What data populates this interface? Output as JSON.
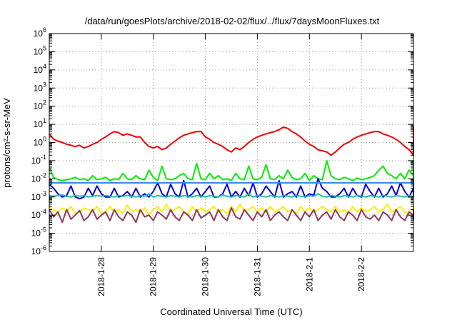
{
  "chart_data": {
    "type": "line",
    "title": "/data/run/goesPlots/archive/2018-02-02/flux/../flux/7daysMoonFluxes.txt",
    "xlabel": "Coordinated Universal Time (UTC)",
    "ylabel": "protons/cm²-s-sr-MeV",
    "y_scale": "log",
    "ylim_exponents": [
      -6,
      6
    ],
    "y_tick_exponents": [
      -6,
      -5,
      -4,
      -3,
      -2,
      -1,
      0,
      1,
      2,
      3,
      4,
      5,
      6
    ],
    "xlim_days": [
      "2018-01-27",
      "2018-02-03"
    ],
    "x_ticks": [
      {
        "date": "2018-01-28",
        "label": "2018-1-28"
      },
      {
        "date": "2018-01-29",
        "label": "2018-1-29"
      },
      {
        "date": "2018-01-30",
        "label": "2018-1-30"
      },
      {
        "date": "2018-01-31",
        "label": "2018-1-31"
      },
      {
        "date": "2018-02-01",
        "label": "2018-2-1"
      },
      {
        "date": "2018-02-02",
        "label": "2018-2-2"
      }
    ],
    "grid": true,
    "legend": "none",
    "x_start": "2018-01-27T00:00",
    "x_step_hours": 2,
    "series": [
      {
        "color": "#ee0000",
        "values": [
          3.0,
          1.5,
          1.2,
          1.0,
          0.8,
          0.7,
          0.6,
          0.7,
          0.5,
          0.6,
          0.8,
          1.0,
          1.5,
          2.0,
          3.0,
          4.0,
          3.5,
          2.5,
          3.0,
          2.5,
          2.0,
          2.0,
          1.0,
          0.6,
          0.5,
          0.6,
          0.4,
          0.5,
          0.8,
          1.2,
          1.8,
          2.5,
          3.0,
          3.5,
          4.0,
          4.0,
          2.0,
          1.5,
          1.0,
          0.8,
          0.6,
          0.4,
          0.3,
          0.5,
          0.4,
          0.6,
          1.0,
          1.5,
          2.0,
          2.5,
          3.0,
          3.5,
          4.0,
          5.0,
          7.0,
          6.0,
          4.0,
          3.0,
          2.0,
          1.2,
          0.8,
          0.6,
          0.4,
          0.35,
          0.3,
          0.2,
          0.3,
          0.5,
          0.8,
          1.0,
          1.5,
          2.0,
          2.5,
          3.0,
          3.5,
          4.0,
          4.0,
          3.0,
          2.5,
          2.0,
          1.5,
          1.0,
          0.6,
          0.4,
          0.2,
          0.8,
          0.6,
          0.5,
          1.0,
          1.5,
          2.0,
          3.0,
          4.0,
          8.0,
          3.0,
          4.0,
          2.5,
          1.5,
          1.0,
          0.8,
          0.6,
          0.4,
          0.5,
          0.6,
          0.8,
          1.0,
          1.5,
          2.0,
          3.0,
          4.0,
          2.5,
          3.0,
          4.0,
          2.0,
          1.5,
          3.0,
          4.0,
          3.0,
          1.5,
          1.0,
          0.6,
          0.4,
          0.5,
          0.8,
          0.6,
          0.8,
          1.0,
          1.5,
          2.0,
          2.5,
          3.0,
          4.0,
          5.0,
          5.0,
          4.0,
          3.5
        ]
      },
      {
        "color": "#00ee00",
        "values": [
          0.04,
          0.012,
          0.009,
          0.008,
          0.009,
          0.01,
          0.012,
          0.009,
          0.01,
          0.008,
          0.015,
          0.009,
          0.01,
          0.012,
          0.008,
          0.01,
          0.009,
          0.02,
          0.01,
          0.009,
          0.015,
          0.01,
          0.009,
          0.03,
          0.012,
          0.008,
          0.05,
          0.01,
          0.009,
          0.01,
          0.015,
          0.02,
          0.01,
          0.009,
          0.07,
          0.01,
          0.009,
          0.02,
          0.01,
          0.015,
          0.009,
          0.01,
          0.008,
          0.02,
          0.01,
          0.009,
          0.05,
          0.01,
          0.009,
          0.012,
          0.06,
          0.01,
          0.009,
          0.015,
          0.01,
          0.03,
          0.012,
          0.009,
          0.01,
          0.02,
          0.008,
          0.015,
          0.01,
          0.009,
          0.1,
          0.015,
          0.01,
          0.009,
          0.012,
          0.01,
          0.008,
          0.011,
          0.009,
          0.01,
          0.012,
          0.015,
          0.03,
          0.05,
          0.02,
          0.015,
          0.01,
          0.02,
          0.01,
          0.03,
          0.015,
          0.008,
          0.01,
          0.012,
          0.009,
          0.05,
          0.01,
          0.015,
          0.009,
          0.01,
          0.08,
          0.01,
          0.009,
          0.012,
          0.015,
          0.01,
          0.04,
          0.012,
          0.009,
          0.01,
          0.02,
          0.009,
          0.01,
          0.015,
          0.01,
          0.012,
          0.009,
          0.05,
          0.015,
          0.009,
          0.01,
          0.02,
          0.01,
          0.009,
          0.012,
          0.1,
          0.01,
          0.009,
          0.015,
          0.01,
          0.02,
          0.009,
          0.01,
          0.015,
          0.012,
          0.03,
          0.009,
          0.01,
          0.012,
          0.009,
          0.01,
          0.01
        ]
      },
      {
        "color": "#0000dd",
        "values": [
          0.005,
          0.003,
          0.0015,
          0.001,
          0.0012,
          0.004,
          0.001,
          0.0008,
          0.001,
          0.003,
          0.0012,
          0.004,
          0.0015,
          0.001,
          0.001,
          0.003,
          0.001,
          0.0012,
          0.002,
          0.001,
          0.003,
          0.001,
          0.0015,
          0.001,
          0.002,
          0.006,
          0.0015,
          0.001,
          0.005,
          0.0015,
          0.001,
          0.008,
          0.001,
          0.0015,
          0.003,
          0.001,
          0.002,
          0.004,
          0.001,
          0.001,
          0.0015,
          0.005,
          0.001,
          0.002,
          0.001,
          0.003,
          0.0012,
          0.006,
          0.001,
          0.0015,
          0.004,
          0.002,
          0.001,
          0.008,
          0.001,
          0.0015,
          0.002,
          0.001,
          0.004,
          0.001,
          0.0015,
          0.0012,
          0.01,
          0.003,
          0.002,
          0.001,
          0.001,
          0.0015,
          0.003,
          0.001,
          0.003,
          0.0012,
          0.001,
          0.005,
          0.002,
          0.001,
          0.003,
          0.001,
          0.0015,
          0.004,
          0.0012,
          0.006,
          0.002,
          0.001,
          0.003,
          0.001,
          0.0015,
          0.001,
          0.002,
          0.004,
          0.001,
          0.0015,
          0.001,
          0.003,
          0.001,
          0.0015,
          0.001,
          0.002,
          0.008,
          0.001,
          0.0015,
          0.003,
          0.001,
          0.0015,
          0.002,
          0.001,
          0.004,
          0.001,
          0.0015,
          0.003,
          0.001,
          0.0012,
          0.005,
          0.0015,
          0.001,
          0.008,
          0.001,
          0.001,
          0.0012,
          0.003,
          0.001,
          0.0015,
          0.002,
          0.001,
          0.006,
          0.0015,
          0.001,
          0.0012,
          0.001,
          0.001,
          0.0012,
          0.0015,
          0.001,
          0.001,
          0.0012,
          0.004
        ]
      },
      {
        "color": "#3a86ff",
        "values": [
          0.006,
          0.006,
          0.006,
          0.006,
          0.006,
          0.006,
          0.006,
          0.006,
          0.006,
          0.006,
          0.006,
          0.006,
          0.006,
          0.006,
          0.006,
          0.006,
          0.006,
          0.006,
          0.006,
          0.006,
          0.006,
          0.006,
          0.006,
          0.006,
          0.006,
          0.006,
          0.006,
          0.006,
          0.006,
          0.006,
          0.006,
          0.006,
          0.006,
          0.006,
          0.006,
          0.006,
          0.006,
          0.006,
          0.006,
          0.006,
          0.006,
          0.006,
          0.006,
          0.006,
          0.006,
          0.006,
          0.006,
          0.006,
          0.006,
          0.006,
          0.006,
          0.006,
          0.006,
          0.006,
          0.006,
          0.006,
          0.006,
          0.006,
          0.006,
          0.006,
          0.006,
          0.006,
          0.006,
          0.006,
          0.006,
          0.006,
          0.006,
          0.006,
          0.006,
          0.006,
          0.006,
          0.006,
          0.006,
          0.006,
          0.006,
          0.006,
          0.006,
          0.006,
          0.006,
          0.006,
          0.006,
          0.006,
          0.006,
          0.006,
          0.006,
          0.006,
          0.006,
          0.006,
          0.006,
          0.006,
          0.006,
          0.006,
          0.006,
          0.006,
          0.006,
          0.006,
          0.006,
          0.006,
          0.006,
          0.006,
          0.006,
          0.006,
          0.006,
          0.006,
          0.006,
          0.006,
          0.006,
          0.006,
          0.006,
          0.006,
          0.006,
          0.006,
          0.006,
          0.006,
          0.006,
          0.006,
          0.006,
          0.006,
          0.006,
          0.006,
          0.006,
          0.006,
          0.006,
          0.006,
          0.006,
          0.006,
          0.006,
          0.006,
          0.006,
          0.006,
          0.006,
          0.006,
          0.006,
          0.006,
          0.006,
          0.006,
          0.006,
          0.006
        ]
      },
      {
        "color": "#1fbfa6",
        "values": [
          0.0012,
          0.0011,
          0.0012,
          0.0013,
          0.0011,
          0.001,
          0.0012,
          0.0011,
          0.0012,
          0.001,
          0.0011,
          0.0012,
          0.0011,
          0.0012,
          0.0011,
          0.001,
          0.0012,
          0.0011,
          0.0012,
          0.0011,
          0.001,
          0.0012,
          0.0011,
          0.0015,
          0.001,
          0.0012,
          0.0011,
          0.001,
          0.0012,
          0.0011,
          0.001,
          0.0012,
          0.0011,
          0.001,
          0.0012,
          0.0011,
          0.001,
          0.0012,
          0.0011,
          0.001,
          0.0013,
          0.0011,
          0.001,
          0.0012,
          0.0011,
          0.001,
          0.0015,
          0.001,
          0.0012,
          0.0011,
          0.001,
          0.0012,
          0.0011,
          0.001,
          0.0012,
          0.0011,
          0.001,
          0.0012,
          0.0011,
          0.001,
          0.0012,
          0.0011,
          0.0015,
          0.0011,
          0.001,
          0.0012,
          0.0011,
          0.001,
          0.0012,
          0.0011,
          0.001,
          0.0012,
          0.0011,
          0.001,
          0.0012,
          0.0011,
          0.001,
          0.0012,
          0.0011,
          0.001,
          0.0012,
          0.0011,
          0.001,
          0.0012,
          0.0011,
          0.001,
          0.0012,
          0.0011,
          0.001,
          0.0013,
          0.0011,
          0.001,
          0.0012,
          0.0011,
          0.001,
          0.0012,
          0.0011,
          0.001,
          0.0012,
          0.0011,
          0.001,
          0.0012,
          0.0011,
          0.001,
          0.0012,
          0.0011,
          0.001,
          0.0012,
          0.0011,
          0.001,
          0.0012,
          0.0011,
          0.001,
          0.0012,
          0.0011,
          0.001,
          0.0012,
          0.0011,
          0.001,
          0.0012,
          0.0011,
          0.001,
          0.0012,
          0.0011,
          0.001,
          0.0012,
          0.0011,
          0.001,
          0.0012,
          0.0011,
          0.001,
          0.0012,
          0.0011,
          0.001,
          0.0012,
          0.0011
        ]
      },
      {
        "color": "#ffee00",
        "values": [
          0.0003,
          0.00018,
          0.00015,
          0.00025,
          0.00015,
          0.0003,
          0.00012,
          0.00015,
          0.00025,
          0.0002,
          0.00015,
          0.0003,
          0.00012,
          0.00015,
          0.0003,
          0.00015,
          0.0002,
          0.00012,
          0.00035,
          0.00015,
          0.0002,
          0.00015,
          0.00025,
          0.0001,
          0.0002,
          0.0003,
          0.00015,
          0.0004,
          0.00015,
          0.0002,
          0.0003,
          0.00015,
          0.00012,
          0.0003,
          0.00015,
          0.00025,
          0.00015,
          0.0002,
          0.0003,
          0.00015,
          0.0002,
          0.00012,
          0.0003,
          0.00015,
          0.0004,
          0.00015,
          0.0002,
          0.0003,
          0.00015,
          0.00025,
          0.00015,
          0.0003,
          0.00015,
          0.0002,
          0.0003,
          0.00015,
          0.0002,
          0.00012,
          0.0003,
          0.00015,
          0.00025,
          0.00015,
          0.0002,
          0.0003,
          0.0002,
          0.00015,
          0.0003,
          0.00015,
          0.0002,
          0.00012,
          0.0003,
          0.00015,
          0.00025,
          0.00015,
          0.0002,
          0.0003,
          0.00015,
          0.0002,
          0.0004,
          0.00015,
          0.0002,
          0.0003,
          0.00015,
          0.00012,
          0.00025,
          0.00015,
          0.0003,
          0.00015,
          0.0002,
          0.00015,
          0.0003,
          0.00015,
          0.0002,
          0.0004,
          0.00015,
          0.0002,
          0.0003,
          0.00015,
          0.00025,
          0.00015,
          0.0003,
          0.00015,
          0.0002,
          0.00015,
          0.0003,
          0.00015,
          0.0002,
          0.00015,
          0.00025,
          0.00015,
          0.0003,
          0.00015,
          0.0002,
          0.00015,
          0.0003,
          0.00015,
          0.0002,
          0.00015,
          0.0003,
          0.00015,
          0.00025,
          0.00015,
          0.0002,
          0.00015,
          0.0003,
          0.00015,
          0.0002,
          0.00015,
          0.0003,
          0.00015,
          0.00025,
          0.00015,
          0.0002,
          0.00015,
          0.0003,
          0.00015
        ]
      },
      {
        "color": "#8b3a62",
        "values": [
          0.0002,
          8e-05,
          0.00015,
          4e-05,
          0.0002,
          6e-05,
          0.0001,
          0.00018,
          5e-05,
          8e-05,
          0.0002,
          6e-05,
          0.0001,
          0.00015,
          5e-05,
          0.0002,
          8e-05,
          5e-05,
          0.00015,
          0.0001,
          4e-05,
          0.0002,
          8e-05,
          0.0001,
          5e-05,
          0.00015,
          0.0001,
          6e-05,
          0.0002,
          8e-05,
          5e-05,
          0.00015,
          0.0001,
          5e-05,
          0.0002,
          7e-05,
          0.0001,
          0.00015,
          5e-05,
          0.0002,
          8e-05,
          5e-05,
          0.00025,
          8e-05,
          6e-05,
          0.0002,
          0.0001,
          5e-05,
          0.00015,
          8e-05,
          0.0002,
          5e-05,
          0.0001,
          0.00015,
          8e-05,
          5e-05,
          0.0002,
          0.0001,
          5e-05,
          0.00015,
          8e-05,
          0.0002,
          5e-05,
          0.0001,
          0.00015,
          6e-05,
          0.0002,
          8e-05,
          5e-05,
          0.00015,
          0.0001,
          5e-05,
          0.0002,
          8e-05,
          6e-05,
          0.0001,
          5e-05,
          0.00015,
          0.0001,
          5e-05,
          0.0002,
          8e-05,
          5e-05,
          0.00015,
          0.0001,
          6e-05,
          0.0002,
          8e-05,
          5e-05,
          0.00015,
          0.0001,
          5e-05,
          0.0002,
          8e-05,
          6e-05,
          0.0001,
          5e-05,
          0.0002,
          8e-05,
          5e-05,
          0.00015,
          0.0001,
          6e-05,
          0.0002,
          8e-05,
          5e-05,
          0.00015,
          0.0001,
          5e-05,
          0.0002,
          8e-05,
          6e-05,
          0.00015,
          0.0001,
          5e-05,
          0.0002,
          8e-05,
          5e-05,
          0.00015,
          0.0001,
          6e-05,
          0.0002,
          8e-05,
          5e-05,
          0.00015,
          0.0001,
          5e-05,
          0.0002,
          8e-05,
          6e-05,
          0.0001,
          5e-05,
          0.0002,
          8e-05,
          5e-05,
          0.00015
        ]
      }
    ]
  }
}
